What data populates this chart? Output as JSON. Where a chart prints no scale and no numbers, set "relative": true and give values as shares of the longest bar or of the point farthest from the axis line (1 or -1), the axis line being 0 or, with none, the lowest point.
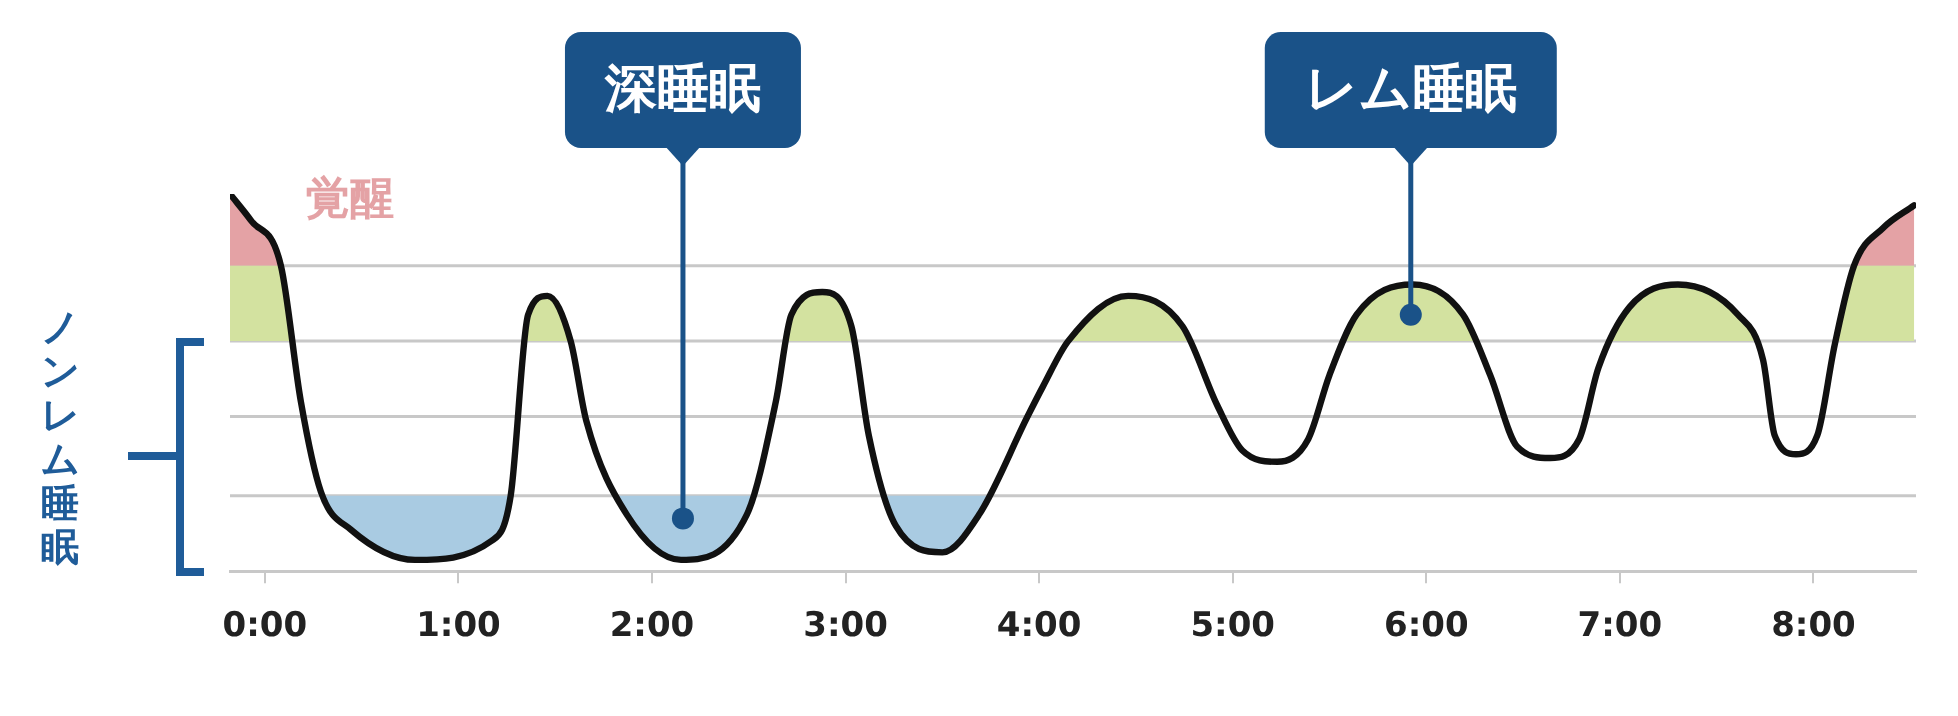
{
  "chart_data": {
    "type": "line",
    "relative": true,
    "ylabel": "ノンレム睡眠",
    "x": [
      -0.18,
      -0.072,
      0.083,
      0.186,
      0.29,
      0.445,
      0.776,
      1.17,
      1.27,
      1.36,
      1.46,
      1.58,
      1.66,
      1.87,
      2.15,
      2.49,
      2.64,
      2.72,
      2.88,
      3.03,
      3.12,
      3.26,
      3.5,
      3.69,
      3.94,
      4.02,
      4.15,
      4.46,
      4.74,
      4.92,
      5.05,
      5.23,
      5.39,
      5.5,
      5.64,
      5.93,
      6.19,
      6.33,
      6.47,
      6.64,
      6.79,
      6.89,
      7.05,
      7.3,
      7.61,
      7.74,
      7.8,
      7.91,
      8.02,
      8.11,
      8.21,
      8.36,
      8.52
    ],
    "series": [
      {
        "color": "#111111",
        "values": [
          1,
          0.93,
          0.81,
          0.45,
          0.21,
          0.11,
          0.03,
          0.08,
          0.2,
          0.68,
          0.73,
          0.61,
          0.4,
          0.15,
          0.03,
          0.15,
          0.45,
          0.68,
          0.74,
          0.65,
          0.36,
          0.12,
          0.05,
          0.15,
          0.41,
          0.49,
          0.61,
          0.73,
          0.65,
          0.44,
          0.32,
          0.29,
          0.35,
          0.52,
          0.68,
          0.76,
          0.68,
          0.52,
          0.33,
          0.3,
          0.35,
          0.54,
          0.7,
          0.76,
          0.68,
          0.56,
          0.36,
          0.31,
          0.36,
          0.6,
          0.81,
          0.91,
          0.97
        ]
      }
    ],
    "xlim": [
      -0.18,
      8.53
    ],
    "xticks": [
      {
        "value": 0,
        "label": "0:00"
      },
      {
        "value": 1,
        "label": "1:00"
      },
      {
        "value": 2,
        "label": "2:00"
      },
      {
        "value": 3,
        "label": "3:00"
      },
      {
        "value": 4,
        "label": "4:00"
      },
      {
        "value": 5,
        "label": "5:00"
      },
      {
        "value": 6,
        "label": "6:00"
      },
      {
        "value": 7,
        "label": "7:00"
      },
      {
        "value": 8,
        "label": "8:00"
      }
    ],
    "ref_lines": [
      {
        "axis": "y",
        "value": 0.81,
        "color": "#c8c8c8"
      },
      {
        "axis": "y",
        "value": 0.61,
        "color": "#c8c8c8"
      },
      {
        "axis": "y",
        "value": 0.41,
        "color": "#c8c8c8"
      },
      {
        "axis": "y",
        "value": 0.2,
        "color": "#c8c8c8"
      }
    ],
    "bands": [
      {
        "axis": "y",
        "from": 0.81,
        "to": 1,
        "color": "#e4a2a5",
        "label": "覚醒"
      },
      {
        "axis": "y",
        "from": 0.61,
        "to": 0.81,
        "color": "#d3e2a0"
      },
      {
        "axis": "y",
        "from": 0,
        "to": 0.2,
        "color": "#a9cbe2"
      }
    ],
    "annotations": [
      {
        "text": "深睡眠",
        "x": 2.16,
        "y": 0.14
      },
      {
        "text": "レム睡眠",
        "x": 5.92,
        "y": 0.68
      }
    ],
    "legend": false,
    "grid": false,
    "line_style": "solid",
    "marker": "none"
  }
}
